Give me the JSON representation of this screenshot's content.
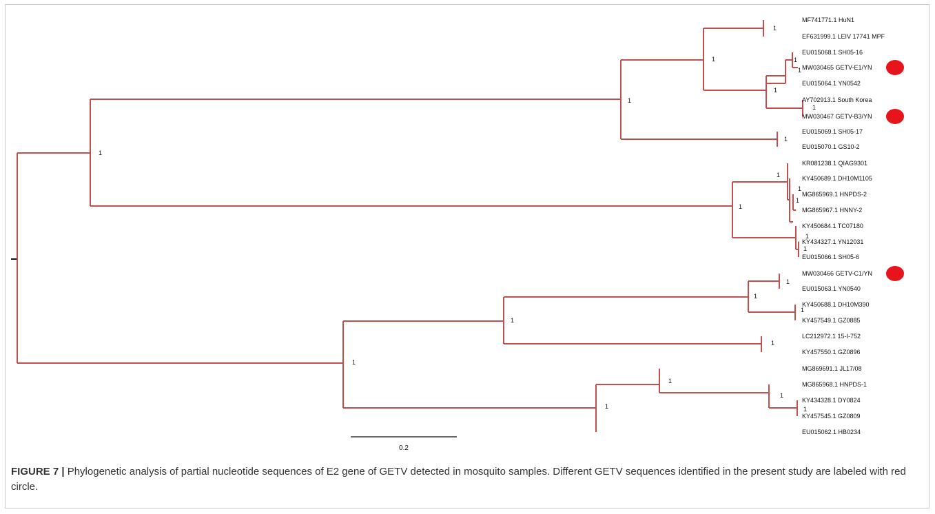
{
  "colors": {
    "branch": "#c0504d",
    "marker": "#e8141c",
    "root": "#111111",
    "text": "#111111"
  },
  "tree": {
    "leaves": [
      "MF741771.1 HuN1",
      "EF631999.1 LEIV 17741 MPF",
      "EU015068.1 SH05-16",
      "MW030465 GETV-E1/YN",
      "EU015064.1 YN0542",
      "AY702913.1 South Korea",
      "MW030467 GETV-B3/YN",
      "EU015069.1 SH05-17",
      "EU015070.1 GS10-2",
      "KR081238.1 QIAG9301",
      "KY450689.1 DH10M1105",
      "MG865969.1 HNPDS-2",
      "MG865967.1 HNNY-2",
      "KY450684.1 TC07180",
      "KY434327.1 YN12031",
      "EU015066.1 SH05-6",
      "MW030466 GETV-C1/YN",
      "EU015063.1 YN0540",
      "KY450688.1 DH10M390",
      "KY457549.1 GZ0885",
      "LC212972.1 15-I-752",
      "KY457550.1 GZ0896",
      "MG869691.1 JL17/08",
      "MG865968.1 HNPDS-1",
      "KY434328.1 DY0824",
      "KY457545.1 GZ0809",
      "EU015062.1 HB0234"
    ],
    "highlighted": [
      "MW030465 GETV-E1/YN",
      "MW030467 GETV-B3/YN",
      "MW030466 GETV-C1/YN"
    ],
    "support_label": "1",
    "scale_label": "0.2"
  },
  "caption": {
    "label": "FIGURE 7 |",
    "text": " Phylogenetic analysis of partial nucleotide sequences of E2 gene of GETV detected in mosquito samples. Different GETV sequences identified in the present study are labeled with red circle."
  }
}
